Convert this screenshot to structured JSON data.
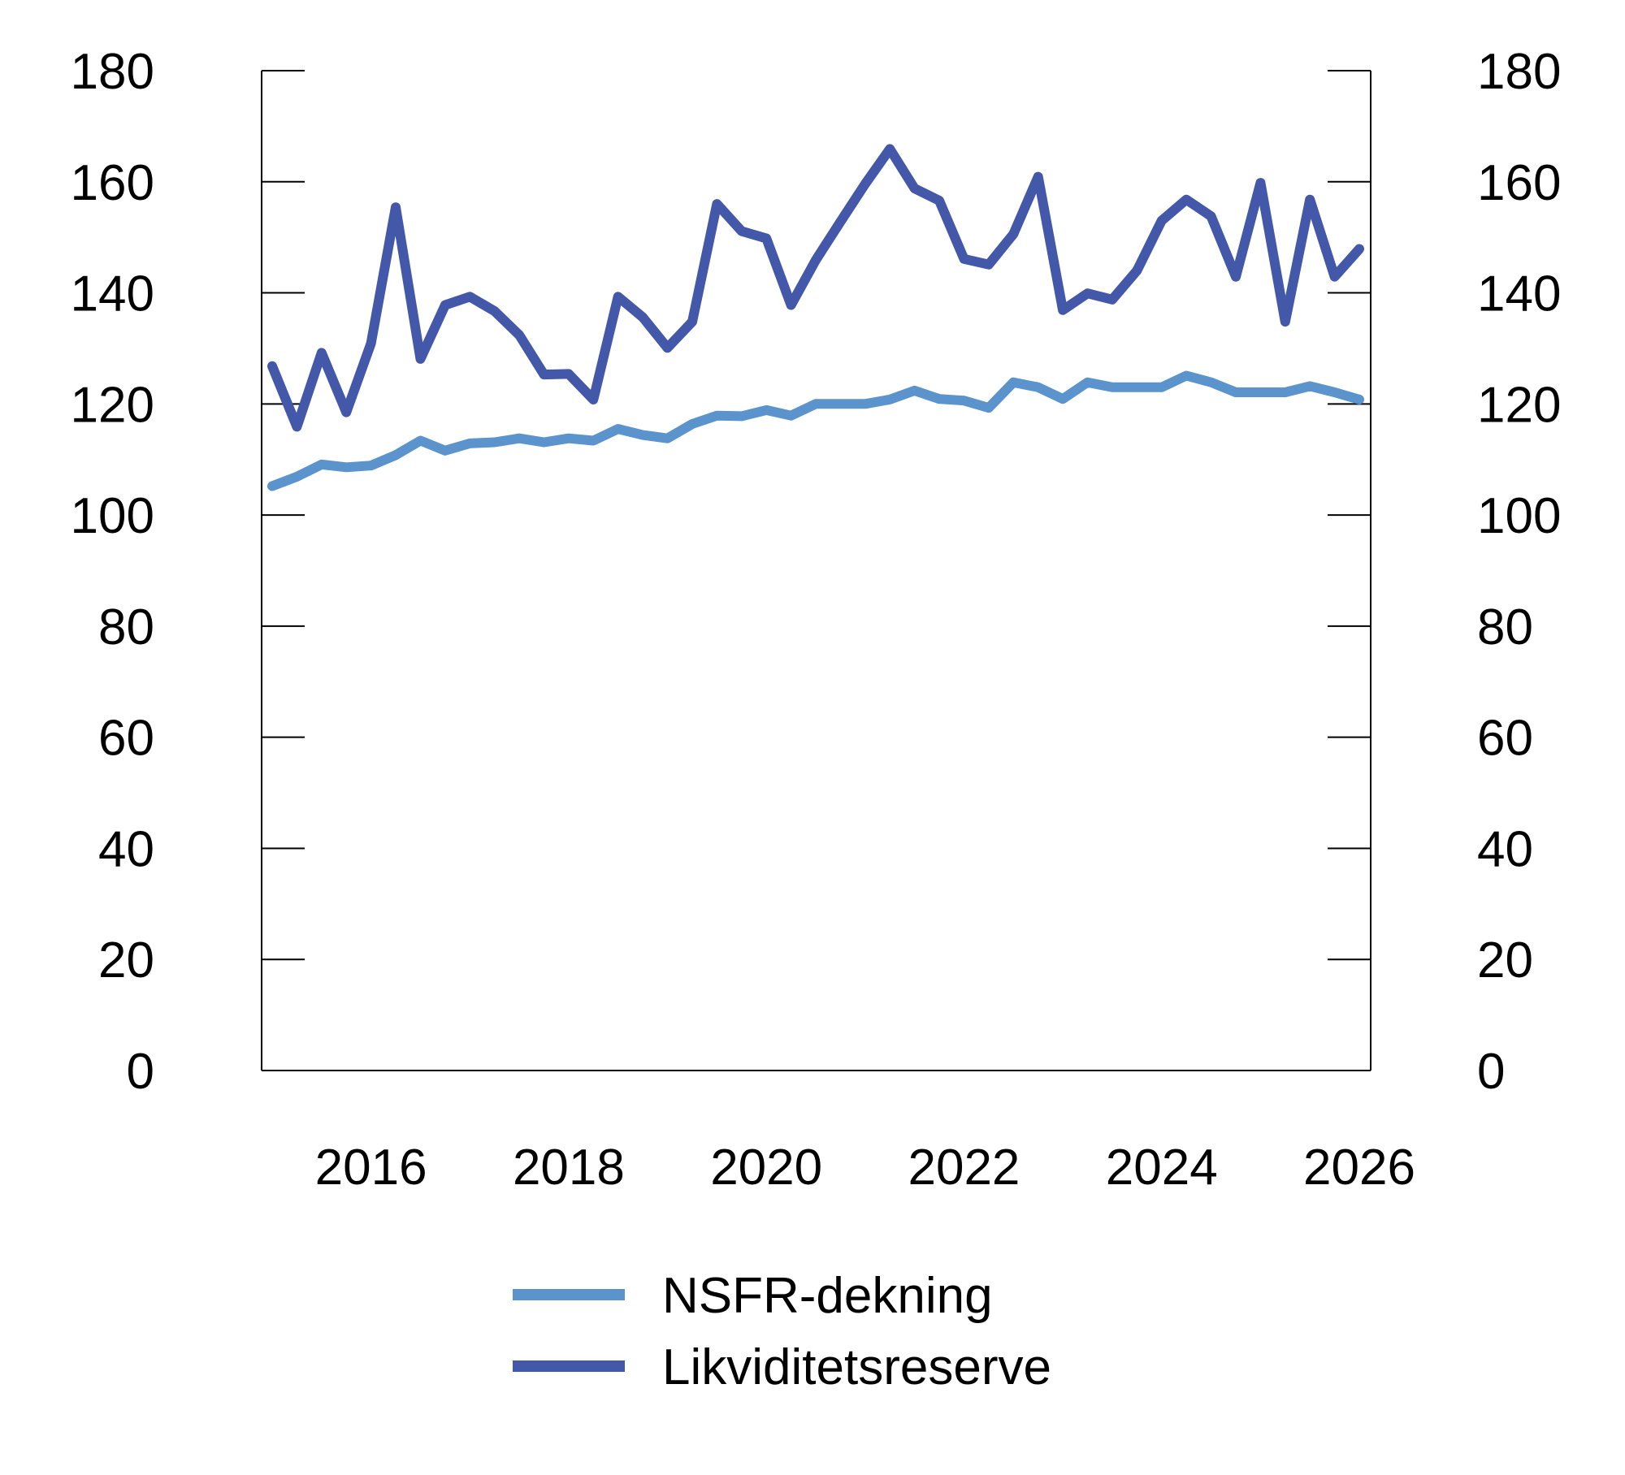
{
  "chart_data": {
    "type": "line",
    "title": "",
    "xlabel": "",
    "ylabel": "",
    "ylim": [
      0,
      180
    ],
    "y_ticks": [
      0,
      20,
      40,
      60,
      80,
      100,
      120,
      140,
      160,
      180
    ],
    "y_axis_right": true,
    "x_ticks": [
      "2016",
      "2018",
      "2020",
      "2022",
      "2024",
      "2026"
    ],
    "xlim": [
      2015.0,
      2026.0
    ],
    "grid": false,
    "legend_placement": "bottom",
    "x": [
      "2015Q1",
      "2015Q2",
      "2015Q3",
      "2015Q4",
      "2016Q1",
      "2016Q2",
      "2016Q3",
      "2016Q4",
      "2017Q1",
      "2017Q2",
      "2017Q3",
      "2017Q4",
      "2018Q1",
      "2018Q2",
      "2018Q3",
      "2018Q4",
      "2019Q1",
      "2019Q2",
      "2019Q3",
      "2019Q4",
      "2020Q1",
      "2020Q2",
      "2020Q3",
      "2020Q4",
      "2021Q1",
      "2021Q2",
      "2021Q3",
      "2021Q4",
      "2022Q1",
      "2022Q2",
      "2022Q3",
      "2022Q4",
      "2023Q1",
      "2023Q2",
      "2023Q3",
      "2023Q4",
      "2024Q1",
      "2024Q2",
      "2024Q3",
      "2024Q4",
      "2025Q1",
      "2025Q2",
      "2025Q3",
      "2025Q4",
      "2026Q1"
    ],
    "series": [
      {
        "name": "NSFR-dekning",
        "color": "#5b93cd",
        "values": [
          105.2,
          106.9,
          109.1,
          108.6,
          108.9,
          110.8,
          113.4,
          111.6,
          112.9,
          113.1,
          113.8,
          113.1,
          113.8,
          113.4,
          115.5,
          114.4,
          113.8,
          116.4,
          117.9,
          117.8,
          118.9,
          117.9,
          120.0,
          120.0,
          120.0,
          120.8,
          122.4,
          120.9,
          120.6,
          119.3,
          123.9,
          123.0,
          120.9,
          123.9,
          123.0,
          123.0,
          123.0,
          125.1,
          123.9,
          122.1,
          122.1,
          122.1,
          123.2,
          122.1,
          120.8
        ]
      },
      {
        "name": "Likviditetsreserve",
        "color": "#4358a8",
        "values": [
          126.8,
          115.9,
          129.2,
          118.5,
          130.9,
          155.4,
          128.1,
          137.8,
          139.3,
          136.7,
          132.4,
          125.3,
          125.4,
          120.8,
          139.3,
          135.6,
          130.1,
          134.8,
          156.0,
          151.1,
          149.8,
          137.8,
          145.9,
          152.8,
          159.6,
          165.9,
          158.8,
          156.6,
          146.1,
          145.1,
          150.6,
          160.9,
          136.9,
          139.9,
          138.8,
          144.0,
          153.0,
          156.8,
          153.8,
          142.9,
          159.8,
          134.8,
          156.8,
          142.9,
          147.9
        ]
      }
    ]
  }
}
